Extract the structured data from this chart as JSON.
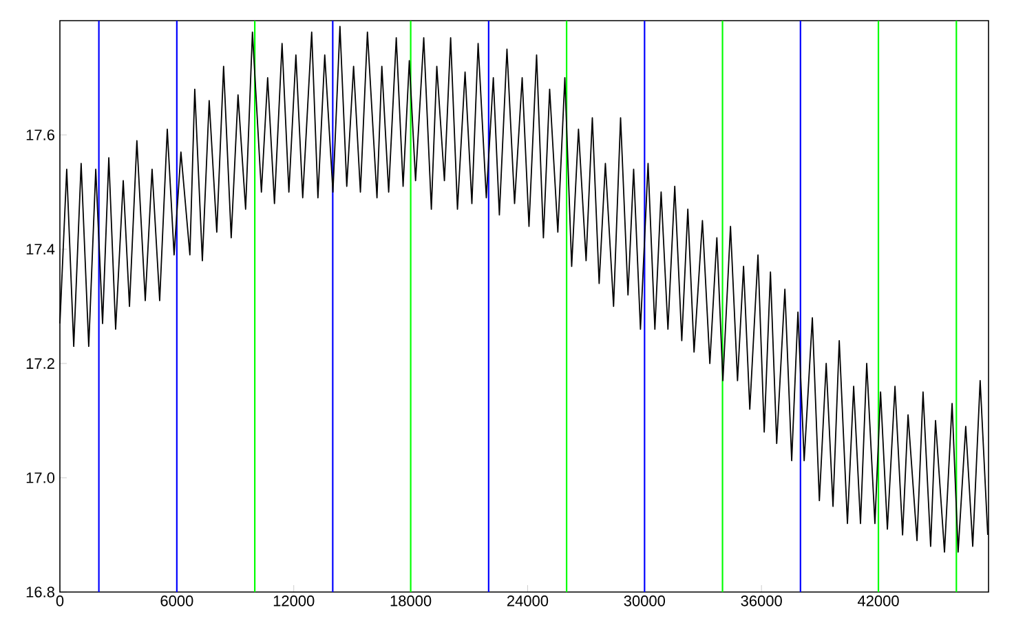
{
  "chart_data": {
    "type": "line",
    "x": [
      0,
      350,
      710,
      1090,
      1480,
      1840,
      2190,
      2510,
      2860,
      3250,
      3570,
      3950,
      4380,
      4730,
      5120,
      5510,
      5860,
      6210,
      6670,
      6920,
      7310,
      7660,
      8050,
      8400,
      8790,
      9140,
      9530,
      9880,
      10340,
      10660,
      11010,
      11400,
      11750,
      12110,
      12460,
      12920,
      13240,
      13590,
      14010,
      14370,
      14720,
      15070,
      15420,
      15780,
      16270,
      16520,
      16870,
      17260,
      17610,
      17930,
      18250,
      18670,
      19060,
      19340,
      19730,
      20050,
      20400,
      20790,
      21140,
      21460,
      21880,
      22240,
      22550,
      22940,
      23330,
      23720,
      24070,
      24460,
      24810,
      25130,
      25550,
      25910,
      26260,
      26610,
      27000,
      27320,
      27670,
      27990,
      28410,
      28770,
      29150,
      29440,
      29790,
      30180,
      30530,
      30850,
      31200,
      31550,
      31910,
      32220,
      32540,
      32970,
      33350,
      33710,
      34020,
      34410,
      34770,
      35080,
      35400,
      35820,
      36140,
      36460,
      36780,
      37200,
      37550,
      37870,
      38190,
      38610,
      38970,
      39320,
      39670,
      39990,
      40410,
      40730,
      41080,
      41400,
      41820,
      42110,
      42460,
      42850,
      43240,
      43520,
      43980,
      44290,
      44680,
      44930,
      45390,
      45780,
      46090,
      46480,
      46840,
      47220,
      47610
    ],
    "series": [
      {
        "color": "#000000",
        "values": [
          17.27,
          17.54,
          17.23,
          17.55,
          17.23,
          17.54,
          17.27,
          17.56,
          17.26,
          17.52,
          17.3,
          17.59,
          17.31,
          17.54,
          17.31,
          17.61,
          17.39,
          17.57,
          17.39,
          17.68,
          17.38,
          17.66,
          17.43,
          17.72,
          17.42,
          17.67,
          17.47,
          17.78,
          17.5,
          17.7,
          17.48,
          17.76,
          17.5,
          17.74,
          17.49,
          17.78,
          17.49,
          17.74,
          17.5,
          17.79,
          17.51,
          17.72,
          17.5,
          17.78,
          17.49,
          17.72,
          17.5,
          17.77,
          17.51,
          17.73,
          17.52,
          17.77,
          17.47,
          17.72,
          17.52,
          17.77,
          17.47,
          17.71,
          17.48,
          17.76,
          17.49,
          17.7,
          17.46,
          17.75,
          17.48,
          17.7,
          17.44,
          17.74,
          17.42,
          17.68,
          17.43,
          17.7,
          17.37,
          17.61,
          17.38,
          17.63,
          17.34,
          17.55,
          17.3,
          17.63,
          17.32,
          17.54,
          17.26,
          17.55,
          17.26,
          17.5,
          17.26,
          17.51,
          17.24,
          17.47,
          17.22,
          17.45,
          17.2,
          17.42,
          17.17,
          17.44,
          17.17,
          17.37,
          17.12,
          17.39,
          17.08,
          17.36,
          17.06,
          17.33,
          17.03,
          17.29,
          17.03,
          17.28,
          16.96,
          17.2,
          16.95,
          17.24,
          16.92,
          17.16,
          16.92,
          17.2,
          16.92,
          17.15,
          16.91,
          17.16,
          16.9,
          17.11,
          16.89,
          17.15,
          16.88,
          17.1,
          16.87,
          17.13,
          16.87,
          17.09,
          16.88,
          17.17,
          16.9
        ]
      }
    ],
    "xlim": [
      0,
      47650
    ],
    "ylim": [
      16.8,
      17.8
    ],
    "xticks": [
      0,
      6000,
      12000,
      18000,
      24000,
      30000,
      36000,
      42000
    ],
    "yticks": [
      16.8,
      {
        "value": 17.0,
        "label": "17.0"
      },
      17.2,
      17.4,
      17.6
    ],
    "ref_lines": [
      {
        "axis": "x",
        "value": 2000,
        "color": "#0000ff"
      },
      {
        "axis": "x",
        "value": 6000,
        "color": "#0000ff"
      },
      {
        "axis": "x",
        "value": 10000,
        "color": "#00ff00"
      },
      {
        "axis": "x",
        "value": 14000,
        "color": "#0000ff"
      },
      {
        "axis": "x",
        "value": 18000,
        "color": "#00ff00"
      },
      {
        "axis": "x",
        "value": 22000,
        "color": "#0000ff"
      },
      {
        "axis": "x",
        "value": 26000,
        "color": "#00ff00"
      },
      {
        "axis": "x",
        "value": 30000,
        "color": "#0000ff"
      },
      {
        "axis": "x",
        "value": 34000,
        "color": "#00ff00"
      },
      {
        "axis": "x",
        "value": 38000,
        "color": "#0000ff"
      },
      {
        "axis": "x",
        "value": 42000,
        "color": "#00ff00"
      },
      {
        "axis": "x",
        "value": 46000,
        "color": "#00ff00"
      }
    ]
  }
}
